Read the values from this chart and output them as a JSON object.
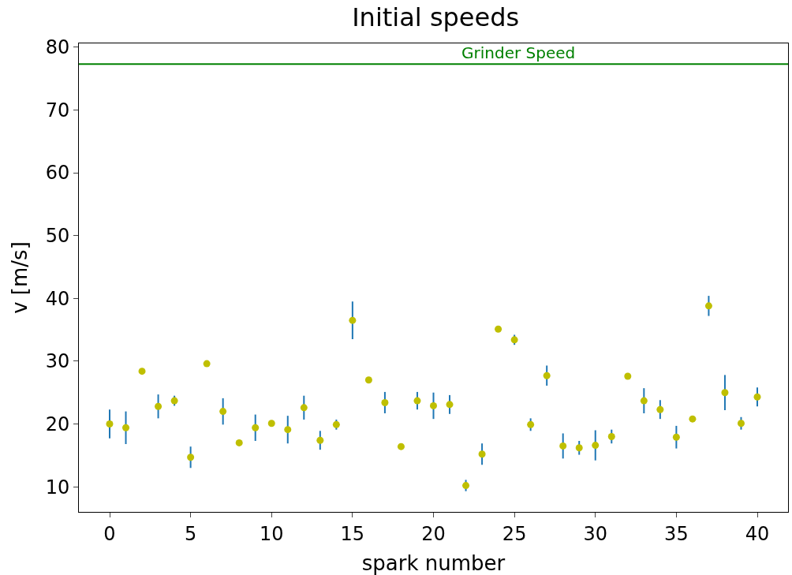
{
  "chart_data": {
    "type": "scatter",
    "title": "Initial speeds",
    "xlabel": "spark number",
    "ylabel": "v [m/s]",
    "x": [
      0,
      1,
      2,
      3,
      4,
      5,
      6,
      7,
      8,
      9,
      10,
      11,
      12,
      13,
      14,
      15,
      16,
      17,
      18,
      19,
      20,
      21,
      22,
      23,
      24,
      25,
      26,
      27,
      28,
      29,
      30,
      31,
      32,
      33,
      34,
      35,
      36,
      37,
      38,
      39,
      40
    ],
    "series": [
      {
        "color": "#bfbf00",
        "values": [
          20.0,
          19.4,
          28.4,
          22.8,
          23.7,
          14.7,
          29.6,
          22.0,
          17.0,
          19.4,
          20.1,
          19.1,
          22.6,
          17.4,
          19.9,
          36.5,
          27.0,
          23.4,
          16.4,
          23.7,
          22.9,
          23.1,
          10.2,
          15.2,
          35.1,
          33.4,
          19.9,
          27.7,
          16.5,
          16.2,
          16.6,
          18.0,
          27.6,
          23.7,
          22.3,
          17.9,
          20.8,
          38.8,
          25.0,
          20.1,
          24.3
        ],
        "errors": [
          2.3,
          2.6,
          null,
          1.9,
          0.8,
          1.7,
          null,
          2.1,
          null,
          2.1,
          null,
          2.2,
          1.9,
          1.5,
          0.8,
          3.0,
          null,
          1.7,
          null,
          1.4,
          2.1,
          1.5,
          0.9,
          1.7,
          null,
          0.8,
          1.0,
          1.6,
          2.0,
          1.1,
          2.4,
          1.1,
          null,
          2.0,
          1.5,
          1.8,
          null,
          1.6,
          2.8,
          1.0,
          1.5
        ]
      }
    ],
    "marker": "circle",
    "xlim": [
      -1.9,
      41.9
    ],
    "ylim": [
      6.0,
      80.6
    ],
    "xticks": [
      0,
      5,
      10,
      15,
      20,
      25,
      30,
      35,
      40
    ],
    "yticks": [
      10,
      20,
      30,
      40,
      50,
      60,
      70,
      80
    ],
    "ref_lines": [
      {
        "axis": "y",
        "value": 77.3,
        "label": "Grinder Speed",
        "color": "#008000"
      }
    ]
  }
}
